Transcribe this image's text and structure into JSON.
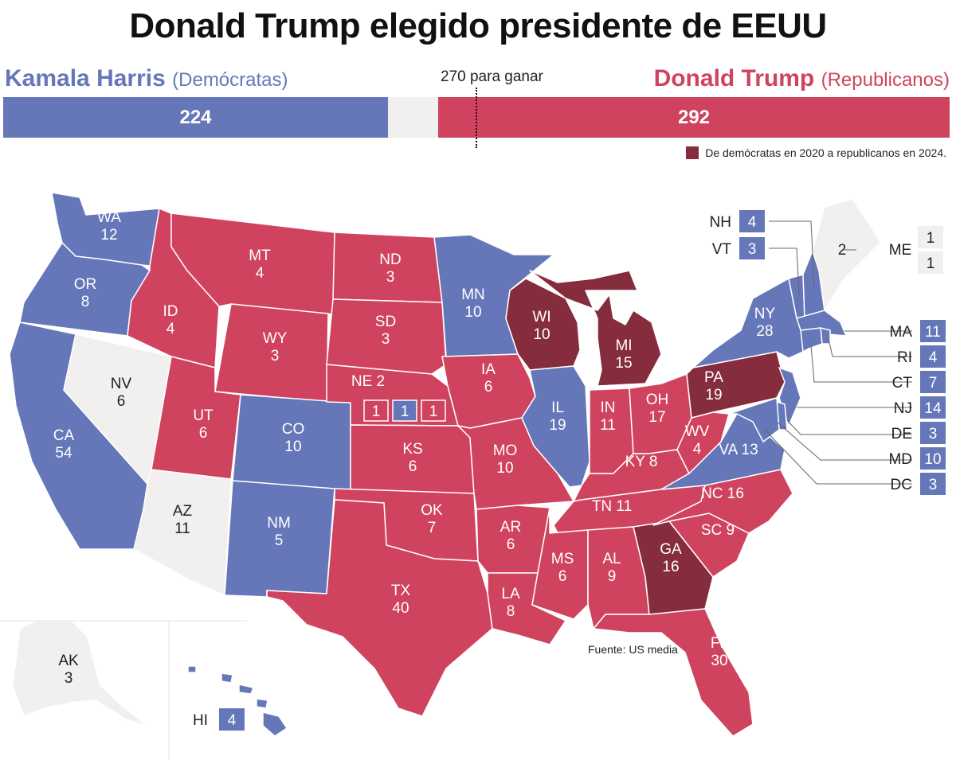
{
  "title": "Donald Trump elegido presidente de EEUU",
  "candidates": {
    "dem": {
      "name": "Kamala Harris",
      "party": "(Demócratas)",
      "votes": "224",
      "color": "#6577b8"
    },
    "rep": {
      "name": "Donald Trump",
      "party": "(Republicanos)",
      "votes": "292",
      "color": "#d0435f"
    }
  },
  "threshold_label": "270 para ganar",
  "legend": {
    "flip": "De demócratas en 2020 a republicanos en 2024.",
    "flip_color": "#852c3d"
  },
  "source": "Fuente: US media",
  "colors": {
    "dem": "#6577b8",
    "rep": "#d0435f",
    "flip": "#852c3d",
    "pending": "#f1f0ee"
  },
  "states": {
    "WA": {
      "abbr": "WA",
      "ev": "12",
      "party": "dem"
    },
    "OR": {
      "abbr": "OR",
      "ev": "8",
      "party": "dem"
    },
    "CA": {
      "abbr": "CA",
      "ev": "54",
      "party": "dem"
    },
    "NV": {
      "abbr": "NV",
      "ev": "6",
      "party": "pending"
    },
    "ID": {
      "abbr": "ID",
      "ev": "4",
      "party": "rep"
    },
    "MT": {
      "abbr": "MT",
      "ev": "4",
      "party": "rep"
    },
    "WY": {
      "abbr": "WY",
      "ev": "3",
      "party": "rep"
    },
    "UT": {
      "abbr": "UT",
      "ev": "6",
      "party": "rep"
    },
    "AZ": {
      "abbr": "AZ",
      "ev": "11",
      "party": "pending"
    },
    "CO": {
      "abbr": "CO",
      "ev": "10",
      "party": "dem"
    },
    "NM": {
      "abbr": "NM",
      "ev": "5",
      "party": "dem"
    },
    "ND": {
      "abbr": "ND",
      "ev": "3",
      "party": "rep"
    },
    "SD": {
      "abbr": "SD",
      "ev": "3",
      "party": "rep"
    },
    "NE": {
      "abbr": "NE",
      "ev": "2",
      "party": "rep",
      "districts": [
        "1",
        "1",
        "1"
      ]
    },
    "KS": {
      "abbr": "KS",
      "ev": "6",
      "party": "rep"
    },
    "OK": {
      "abbr": "OK",
      "ev": "7",
      "party": "rep"
    },
    "TX": {
      "abbr": "TX",
      "ev": "40",
      "party": "rep"
    },
    "MN": {
      "abbr": "MN",
      "ev": "10",
      "party": "dem"
    },
    "IA": {
      "abbr": "IA",
      "ev": "6",
      "party": "rep"
    },
    "MO": {
      "abbr": "MO",
      "ev": "10",
      "party": "rep"
    },
    "AR": {
      "abbr": "AR",
      "ev": "6",
      "party": "rep"
    },
    "LA": {
      "abbr": "LA",
      "ev": "8",
      "party": "rep"
    },
    "WI": {
      "abbr": "WI",
      "ev": "10",
      "party": "flip"
    },
    "IL": {
      "abbr": "IL",
      "ev": "19",
      "party": "dem"
    },
    "MI": {
      "abbr": "MI",
      "ev": "15",
      "party": "flip"
    },
    "IN": {
      "abbr": "IN",
      "ev": "11",
      "party": "rep"
    },
    "OH": {
      "abbr": "OH",
      "ev": "17",
      "party": "rep"
    },
    "KY": {
      "abbr": "KY",
      "ev": "8",
      "party": "rep"
    },
    "TN": {
      "abbr": "TN",
      "ev": "11",
      "party": "rep"
    },
    "MS": {
      "abbr": "MS",
      "ev": "6",
      "party": "rep"
    },
    "AL": {
      "abbr": "AL",
      "ev": "9",
      "party": "rep"
    },
    "GA": {
      "abbr": "GA",
      "ev": "16",
      "party": "flip"
    },
    "FL": {
      "abbr": "FL",
      "ev": "30",
      "party": "rep"
    },
    "SC": {
      "abbr": "SC",
      "ev": "9",
      "party": "rep"
    },
    "NC": {
      "abbr": "NC",
      "ev": "16",
      "party": "rep"
    },
    "VA": {
      "abbr": "VA",
      "ev": "13",
      "party": "dem"
    },
    "WV": {
      "abbr": "WV",
      "ev": "4",
      "party": "rep"
    },
    "PA": {
      "abbr": "PA",
      "ev": "19",
      "party": "flip"
    },
    "NY": {
      "abbr": "NY",
      "ev": "28",
      "party": "dem"
    },
    "ME": {
      "abbr": "ME",
      "ev": "2",
      "party": "pending",
      "districts": [
        "1",
        "1"
      ]
    },
    "NH": {
      "abbr": "NH",
      "ev": "4",
      "party": "dem"
    },
    "VT": {
      "abbr": "VT",
      "ev": "3",
      "party": "dem"
    },
    "MA": {
      "abbr": "MA",
      "ev": "11",
      "party": "dem"
    },
    "RI": {
      "abbr": "RI",
      "ev": "4",
      "party": "dem"
    },
    "CT": {
      "abbr": "CT",
      "ev": "7",
      "party": "dem"
    },
    "NJ": {
      "abbr": "NJ",
      "ev": "14",
      "party": "dem"
    },
    "DE": {
      "abbr": "DE",
      "ev": "3",
      "party": "dem"
    },
    "MD": {
      "abbr": "MD",
      "ev": "10",
      "party": "dem"
    },
    "DC": {
      "abbr": "DC",
      "ev": "3",
      "party": "dem"
    },
    "AK": {
      "abbr": "AK",
      "ev": "3",
      "party": "pending"
    },
    "HI": {
      "abbr": "HI",
      "ev": "4",
      "party": "dem"
    }
  }
}
